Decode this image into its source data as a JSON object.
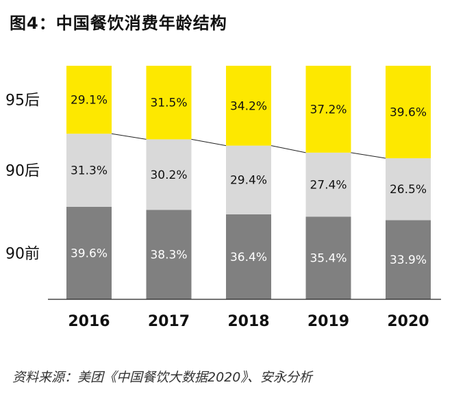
{
  "title": "图4：中国餐饮消费年龄结构",
  "source": "资料来源：美团《中国餐饮大数据2020》、安永分析",
  "chart_data": {
    "type": "bar",
    "stacked": true,
    "categories": [
      "2016",
      "2017",
      "2018",
      "2019",
      "2020"
    ],
    "series": [
      {
        "name": "90前",
        "color": "#808080",
        "values": [
          39.6,
          38.3,
          36.4,
          35.4,
          33.9
        ],
        "labels": [
          "39.6%",
          "38.3%",
          "36.4%",
          "35.4%",
          "33.9%"
        ]
      },
      {
        "name": "90后",
        "color": "#d9d9d9",
        "values": [
          31.3,
          30.2,
          29.4,
          27.4,
          26.5
        ],
        "labels": [
          "31.3%",
          "30.2%",
          "29.4%",
          "27.4%",
          "26.5%"
        ]
      },
      {
        "name": "95后",
        "color": "#fde800",
        "values": [
          29.1,
          31.5,
          34.2,
          37.2,
          39.6
        ],
        "labels": [
          "29.1%",
          "31.5%",
          "34.2%",
          "37.2%",
          "39.6%"
        ]
      }
    ],
    "ylim": [
      0,
      100
    ],
    "connector_line": true,
    "grid": false
  }
}
